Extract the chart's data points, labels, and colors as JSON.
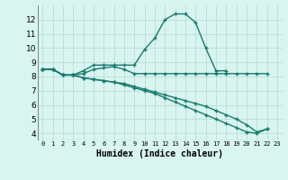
{
  "xlabel": "Humidex (Indice chaleur)",
  "x": [
    0,
    1,
    2,
    3,
    4,
    5,
    6,
    7,
    8,
    9,
    10,
    11,
    12,
    13,
    14,
    15,
    16,
    17,
    18,
    19,
    20,
    21,
    22,
    23
  ],
  "line1_y": [
    8.5,
    8.5,
    8.1,
    8.1,
    8.4,
    8.8,
    8.8,
    8.8,
    8.8,
    8.8,
    9.9,
    10.7,
    12.0,
    12.4,
    12.4,
    11.8,
    10.0,
    8.4,
    8.4,
    null,
    null,
    null,
    null,
    null
  ],
  "line2_y": [
    8.5,
    8.5,
    8.1,
    8.1,
    8.2,
    8.5,
    8.6,
    8.7,
    8.5,
    8.2,
    8.2,
    8.2,
    8.2,
    8.2,
    8.2,
    8.2,
    8.2,
    8.2,
    8.2,
    8.2,
    8.2,
    8.2,
    8.2,
    null
  ],
  "line3_y": [
    8.5,
    8.5,
    8.1,
    8.1,
    7.9,
    7.8,
    7.7,
    7.6,
    7.5,
    7.3,
    7.1,
    6.9,
    6.7,
    6.5,
    6.3,
    6.1,
    5.9,
    5.6,
    5.3,
    5.0,
    4.6,
    4.1,
    4.3,
    null
  ],
  "line4_y": [
    8.5,
    8.5,
    8.1,
    8.1,
    7.9,
    7.8,
    7.7,
    7.6,
    7.4,
    7.2,
    7.0,
    6.8,
    6.5,
    6.2,
    5.9,
    5.6,
    5.3,
    5.0,
    4.7,
    4.4,
    4.1,
    4.0,
    4.3,
    null
  ],
  "color": "#1a7a6e",
  "bg_color": "#d8f5f0",
  "grid_color": "#b8deda",
  "ylim": [
    3.5,
    13.0
  ],
  "xlim": [
    -0.5,
    23.5
  ],
  "yticks": [
    4,
    5,
    6,
    7,
    8,
    9,
    10,
    11,
    12
  ],
  "xtick_labels": [
    "0",
    "1",
    "2",
    "3",
    "4",
    "5",
    "6",
    "7",
    "8",
    "9",
    "10",
    "11",
    "12",
    "13",
    "14",
    "15",
    "16",
    "17",
    "18",
    "19",
    "20",
    "21",
    "22",
    "23"
  ]
}
